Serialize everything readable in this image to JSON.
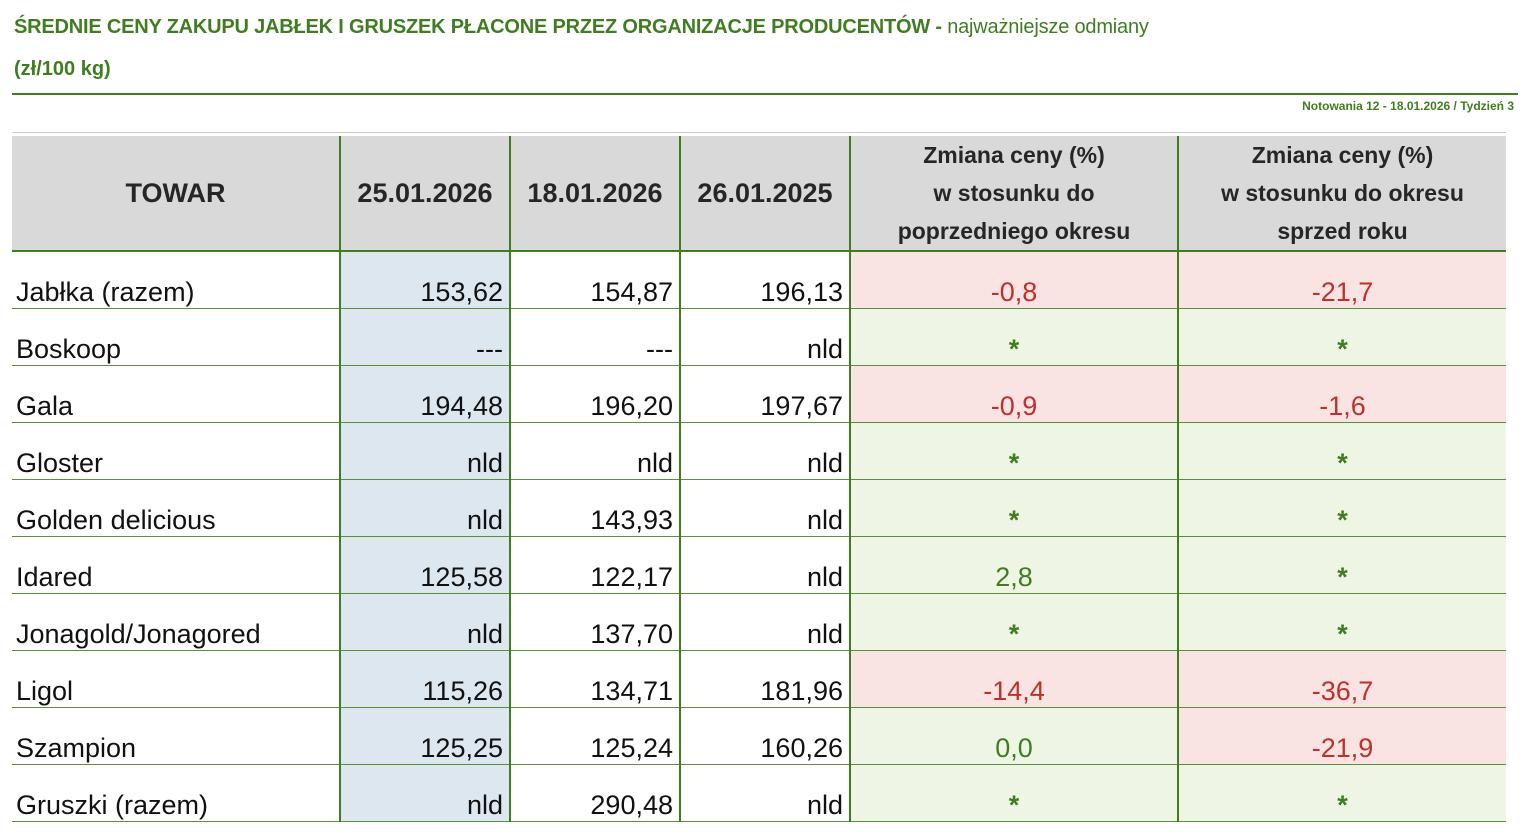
{
  "title": {
    "main": "ŚREDNIE CENY ZAKUPU JABŁEK I GRUSZEK PŁACONE PRZEZ ORGANIZACJE PRODUCENTÓW",
    "separator": " - ",
    "sub": "najważniejsze odmiany",
    "unit": "(zł/100 kg)"
  },
  "notowania": "Notowania 12 - 18.01.2026 / Tydzień 3",
  "colors": {
    "accent_green": "#3f7d20",
    "negative_red": "#c0302b",
    "negative_bg": "#f9e3e3",
    "positive_bg": "#eef5e4",
    "current_col_bg": "#dde7f0",
    "header_bg": "#d9d9d9"
  },
  "table": {
    "headers": {
      "towar": "TOWAR",
      "d1": "25.01.2026",
      "d2": "18.01.2026",
      "d3": "26.01.2025",
      "chg1": [
        "Zmiana ceny (%)",
        "w stosunku do",
        "poprzedniego okresu"
      ],
      "chg2": [
        "Zmiana ceny (%)",
        "w stosunku do okresu",
        "sprzed roku"
      ]
    },
    "rows": [
      {
        "name": "Jabłka (razem)",
        "d1": "153,62",
        "d2": "154,87",
        "d3": "196,13",
        "chg1": "-0,8",
        "chg1_type": "neg",
        "chg2": "-21,7",
        "chg2_type": "neg"
      },
      {
        "name": "Boskoop",
        "d1": "---",
        "d2": "---",
        "d3": "nld",
        "chg1": "*",
        "chg1_type": "star",
        "chg2": "*",
        "chg2_type": "star"
      },
      {
        "name": "Gala",
        "d1": "194,48",
        "d2": "196,20",
        "d3": "197,67",
        "chg1": "-0,9",
        "chg1_type": "neg",
        "chg2": "-1,6",
        "chg2_type": "neg"
      },
      {
        "name": "Gloster",
        "d1": "nld",
        "d2": "nld",
        "d3": "nld",
        "chg1": "*",
        "chg1_type": "star",
        "chg2": "*",
        "chg2_type": "star"
      },
      {
        "name": "Golden delicious",
        "d1": "nld",
        "d2": "143,93",
        "d3": "nld",
        "chg1": "*",
        "chg1_type": "star",
        "chg2": "*",
        "chg2_type": "star"
      },
      {
        "name": "Idared",
        "d1": "125,58",
        "d2": "122,17",
        "d3": "nld",
        "chg1": "2,8",
        "chg1_type": "pos",
        "chg2": "*",
        "chg2_type": "star"
      },
      {
        "name": "Jonagold/Jonagored",
        "d1": "nld",
        "d2": "137,70",
        "d3": "nld",
        "chg1": "*",
        "chg1_type": "star",
        "chg2": "*",
        "chg2_type": "star"
      },
      {
        "name": "Ligol",
        "d1": "115,26",
        "d2": "134,71",
        "d3": "181,96",
        "chg1": "-14,4",
        "chg1_type": "neg",
        "chg2": "-36,7",
        "chg2_type": "neg"
      },
      {
        "name": "Szampion",
        "d1": "125,25",
        "d2": "125,24",
        "d3": "160,26",
        "chg1": "0,0",
        "chg1_type": "pos",
        "chg2": "-21,9",
        "chg2_type": "neg"
      },
      {
        "name": "Gruszki (razem)",
        "d1": "nld",
        "d2": "290,48",
        "d3": "nld",
        "chg1": "*",
        "chg1_type": "star",
        "chg2": "*",
        "chg2_type": "star"
      }
    ]
  }
}
